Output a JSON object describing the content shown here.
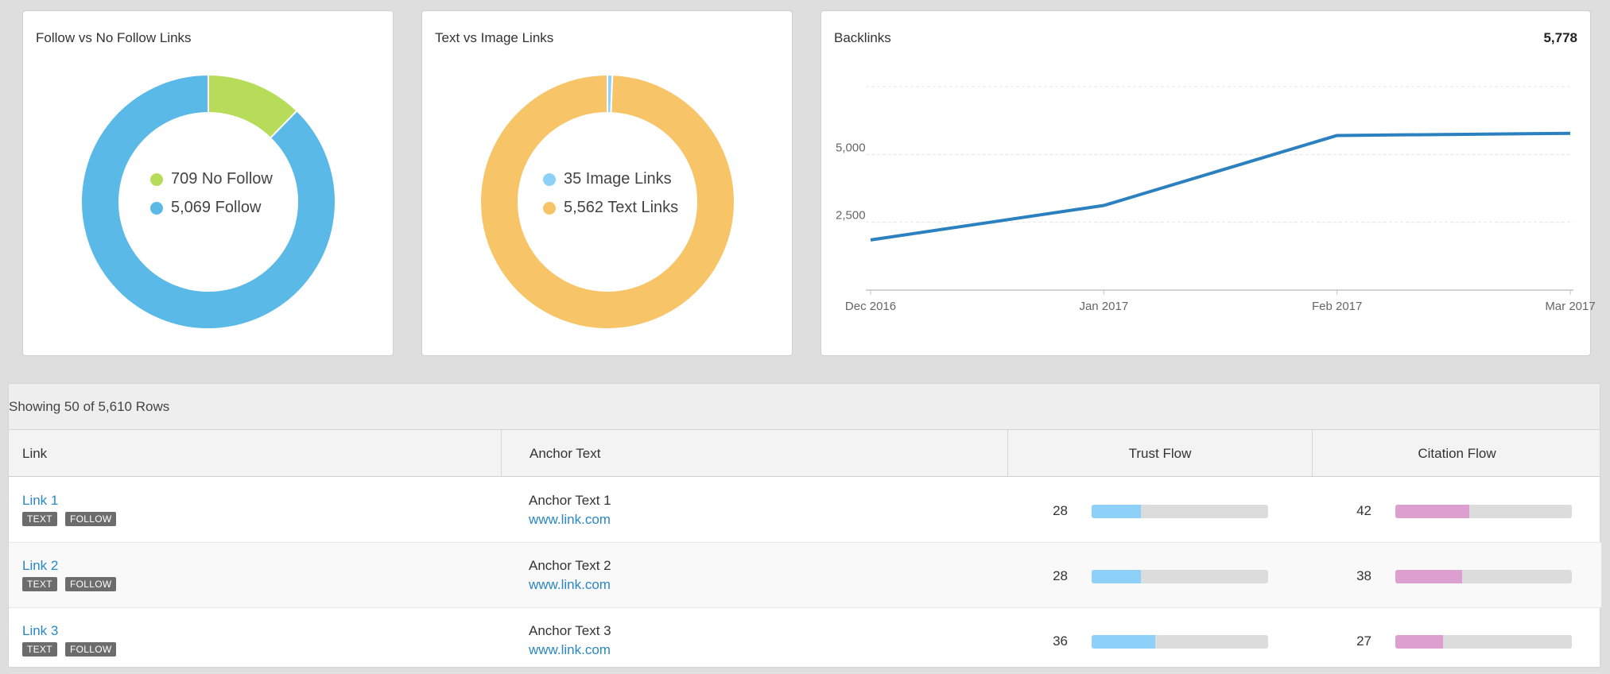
{
  "cards": {
    "follow": {
      "title": "Follow vs No Follow Links",
      "legend": [
        {
          "label": "709 No Follow",
          "color": "#b7dc5a"
        },
        {
          "label": "5,069 Follow",
          "color": "#5ab9e6"
        }
      ]
    },
    "text_image": {
      "title": "Text vs Image Links",
      "legend": [
        {
          "label": "35 Image Links",
          "color": "#8dd1f8"
        },
        {
          "label": "5,562 Text Links",
          "color": "#f8c468"
        }
      ]
    },
    "backlinks": {
      "title": "Backlinks",
      "total": "5,778"
    }
  },
  "chart_data": [
    {
      "type": "pie",
      "title": "Follow vs No Follow Links",
      "labels": [
        "No Follow",
        "Follow"
      ],
      "values": [
        709,
        5069
      ],
      "colors": [
        "#b7dc5a",
        "#5ab9e6"
      ]
    },
    {
      "type": "pie",
      "title": "Text vs Image Links",
      "labels": [
        "Image Links",
        "Text Links"
      ],
      "values": [
        35,
        5562
      ],
      "colors": [
        "#8dd1f8",
        "#f8c468"
      ]
    },
    {
      "type": "line",
      "title": "Backlinks",
      "x": [
        "Dec 2016",
        "Jan 2017",
        "Feb 2017",
        "Mar 2017"
      ],
      "series": [
        {
          "values": [
            1850,
            3120,
            5700,
            5778
          ],
          "color": "#2b80c0"
        }
      ],
      "yticks": [
        "2,500",
        "5,000"
      ],
      "ylim": [
        0,
        7500
      ],
      "grid": true
    }
  ],
  "table": {
    "summary": "Showing 50 of 5,610 Rows",
    "columns": [
      "Link",
      "Anchor Text",
      "Trust Flow",
      "Citation Flow"
    ],
    "rows": [
      {
        "link": "Link 1",
        "tags": [
          "TEXT",
          "FOLLOW"
        ],
        "anchor": "Anchor Text 1",
        "url": "www.link.com",
        "trust_flow": "28",
        "trust_level": 0.28,
        "citation_flow": "42",
        "citation_level": 0.42
      },
      {
        "link": "Link 2",
        "tags": [
          "TEXT",
          "FOLLOW"
        ],
        "anchor": "Anchor Text 2",
        "url": "www.link.com",
        "trust_flow": "28",
        "trust_level": 0.28,
        "citation_flow": "38",
        "citation_level": 0.38
      },
      {
        "link": "Link 3",
        "tags": [
          "TEXT",
          "FOLLOW"
        ],
        "anchor": "Anchor Text 3",
        "url": "www.link.com",
        "trust_flow": "36",
        "trust_level": 0.36,
        "citation_flow": "27",
        "citation_level": 0.27
      }
    ]
  }
}
